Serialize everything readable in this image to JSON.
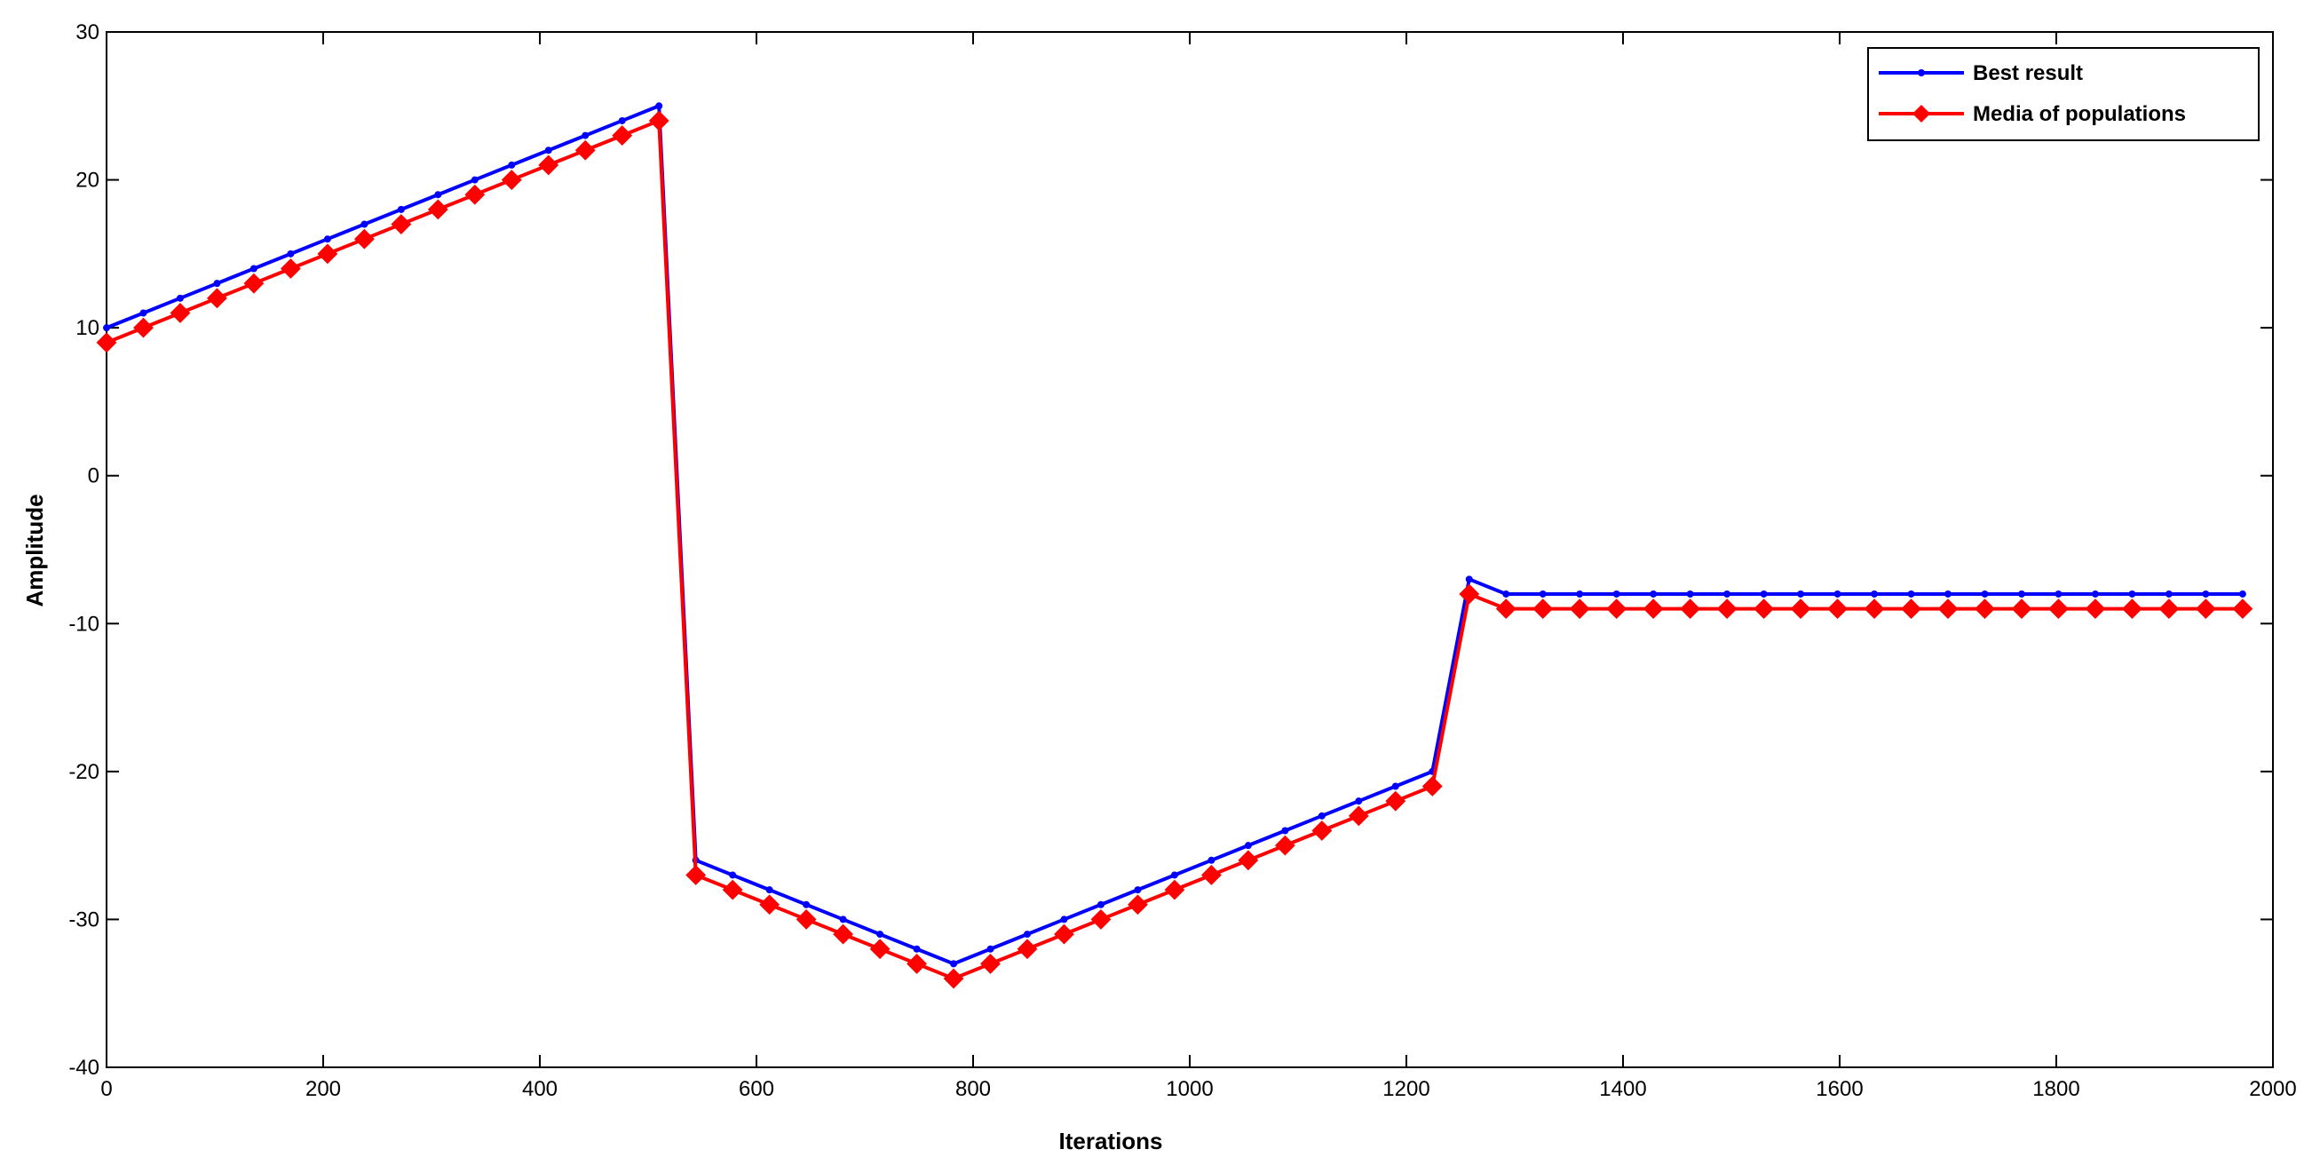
{
  "chart_data": {
    "type": "line",
    "title": "",
    "xlabel": "Iterations",
    "ylabel": "Amplitude",
    "xlim": [
      0,
      2000
    ],
    "ylim": [
      -40,
      30
    ],
    "xticks": [
      0,
      200,
      400,
      600,
      800,
      1000,
      1200,
      1400,
      1600,
      1800,
      2000
    ],
    "yticks": [
      30,
      20,
      10,
      0,
      -10,
      -20,
      -30,
      -40
    ],
    "grid": false,
    "legend_position": "top-right",
    "x": [
      0,
      34,
      68,
      102,
      136,
      170,
      204,
      238,
      272,
      306,
      340,
      374,
      408,
      442,
      476,
      510,
      544,
      578,
      612,
      646,
      680,
      714,
      748,
      782,
      816,
      850,
      884,
      918,
      952,
      986,
      1020,
      1054,
      1088,
      1122,
      1156,
      1190,
      1224,
      1258,
      1292,
      1326,
      1360,
      1394,
      1428,
      1462,
      1496,
      1530,
      1564,
      1598,
      1632,
      1666,
      1700,
      1734,
      1768,
      1802,
      1836,
      1870,
      1904,
      1938,
      1972
    ],
    "series": [
      {
        "name": "Best result",
        "color": "#0000ff",
        "marker": "dot",
        "values": [
          10,
          11,
          12,
          13,
          14,
          15,
          16,
          17,
          18,
          19,
          20,
          21,
          22,
          23,
          24,
          25,
          -26,
          -27,
          -28,
          -29,
          -30,
          -31,
          -32,
          -33,
          -32,
          -31,
          -30,
          -29,
          -28,
          -27,
          -26,
          -25,
          -24,
          -23,
          -22,
          -21,
          -20,
          -7,
          -8,
          -8,
          -8,
          -8,
          -8,
          -8,
          -8,
          -8,
          -8,
          -8,
          -8,
          -8,
          -8,
          -8,
          -8,
          -8,
          -8,
          -8,
          -8,
          -8,
          -8
        ]
      },
      {
        "name": "Media of populations",
        "color": "#ff0000",
        "marker": "diamond",
        "values": [
          9,
          10,
          11,
          12,
          13,
          14,
          15,
          16,
          17,
          18,
          19,
          20,
          21,
          22,
          23,
          24,
          -27,
          -28,
          -29,
          -30,
          -31,
          -32,
          -33,
          -34,
          -33,
          -32,
          -31,
          -30,
          -29,
          -28,
          -27,
          -26,
          -25,
          -24,
          -23,
          -22,
          -21,
          -8,
          -9,
          -9,
          -9,
          -9,
          -9,
          -9,
          -9,
          -9,
          -9,
          -9,
          -9,
          -9,
          -9,
          -9,
          -9,
          -9,
          -9,
          -9,
          -9,
          -9,
          -9
        ]
      }
    ]
  }
}
